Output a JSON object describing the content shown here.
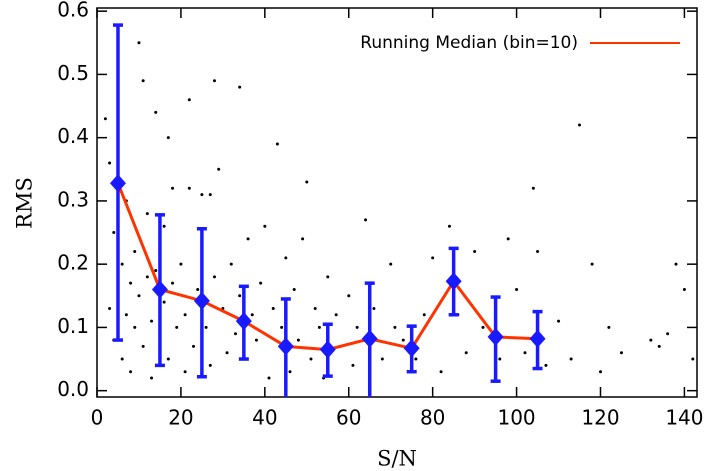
{
  "chart_data": {
    "type": "scatter",
    "xlabel": "S/N",
    "ylabel": "RMS",
    "xlim": [
      0,
      143
    ],
    "ylim": [
      -0.01,
      0.605
    ],
    "xticks": [
      0,
      20,
      40,
      60,
      80,
      100,
      120,
      140
    ],
    "yticks": [
      {
        "value": 0,
        "label": "0.0"
      },
      0.1,
      0.2,
      0.3,
      0.4,
      0.5,
      0.6
    ],
    "legend": "upper right",
    "scatter": {
      "color": "#000000",
      "x": [
        2,
        3,
        3,
        4,
        4,
        5,
        6,
        6,
        7,
        7,
        8,
        8,
        9,
        9,
        10,
        10,
        11,
        11,
        12,
        12,
        13,
        13,
        14,
        14,
        15,
        16,
        16,
        17,
        17,
        18,
        18,
        19,
        20,
        21,
        21,
        22,
        22,
        23,
        24,
        25,
        26,
        27,
        27,
        28,
        28,
        29,
        30,
        31,
        32,
        33,
        34,
        34,
        35,
        36,
        37,
        38,
        39,
        40,
        41,
        42,
        43,
        44,
        45,
        46,
        47,
        48,
        49,
        50,
        51,
        52,
        53,
        54,
        55,
        57,
        58,
        60,
        61,
        62,
        64,
        66,
        68,
        70,
        71,
        73,
        76,
        78,
        80,
        82,
        84,
        86,
        88,
        90,
        92,
        96,
        98,
        100,
        102,
        104,
        105,
        107,
        110,
        113,
        115,
        118,
        120,
        122,
        125,
        132,
        134,
        136,
        138,
        140,
        142
      ],
      "y": [
        0.43,
        0.36,
        0.13,
        0.25,
        0.08,
        0.54,
        0.2,
        0.05,
        0.3,
        0.12,
        0.17,
        0.03,
        0.22,
        0.1,
        0.55,
        0.15,
        0.49,
        0.07,
        0.18,
        0.28,
        0.02,
        0.11,
        0.44,
        0.19,
        0.08,
        0.26,
        0.14,
        0.05,
        0.4,
        0.32,
        0.17,
        0.1,
        0.2,
        0.03,
        0.12,
        0.46,
        0.32,
        0.07,
        0.16,
        0.31,
        0.1,
        0.04,
        0.31,
        0.49,
        0.18,
        0.35,
        0.13,
        0.06,
        0.2,
        0.09,
        0.48,
        0.15,
        0.05,
        0.24,
        0.12,
        0.08,
        0.17,
        0.26,
        0.02,
        0.13,
        0.39,
        0.1,
        0.21,
        0.03,
        0.16,
        0.08,
        0.24,
        0.33,
        0.05,
        0.13,
        0.1,
        0.02,
        0.18,
        0.12,
        0.07,
        0.15,
        0.04,
        0.1,
        0.27,
        0.13,
        0.05,
        0.2,
        0.1,
        0.08,
        0.05,
        0.12,
        0.21,
        0.03,
        0.26,
        0.12,
        0.06,
        0.22,
        0.1,
        0.05,
        0.24,
        0.16,
        0.06,
        0.32,
        0.22,
        0.04,
        0.11,
        0.05,
        0.42,
        0.2,
        0.03,
        0.1,
        0.06,
        0.08,
        0.07,
        0.09,
        0.2,
        0.16,
        0.05
      ]
    },
    "series": [
      {
        "name": "Running Median (bin=10)",
        "color": "#ff3300",
        "marker_color": "#1a1aff",
        "x": [
          5,
          15,
          25,
          35,
          45,
          55,
          65,
          75,
          85,
          95,
          105
        ],
        "values": [
          0.328,
          0.16,
          0.142,
          0.11,
          0.07,
          0.065,
          0.082,
          0.067,
          0.173,
          0.085,
          0.082
        ],
        "error_low": [
          0.08,
          0.04,
          0.022,
          0.05,
          -0.01,
          0.023,
          -0.01,
          0.03,
          0.12,
          0.015,
          0.035
        ],
        "error_high": [
          0.578,
          0.278,
          0.256,
          0.165,
          0.145,
          0.105,
          0.17,
          0.102,
          0.225,
          0.148,
          0.125
        ]
      }
    ]
  }
}
